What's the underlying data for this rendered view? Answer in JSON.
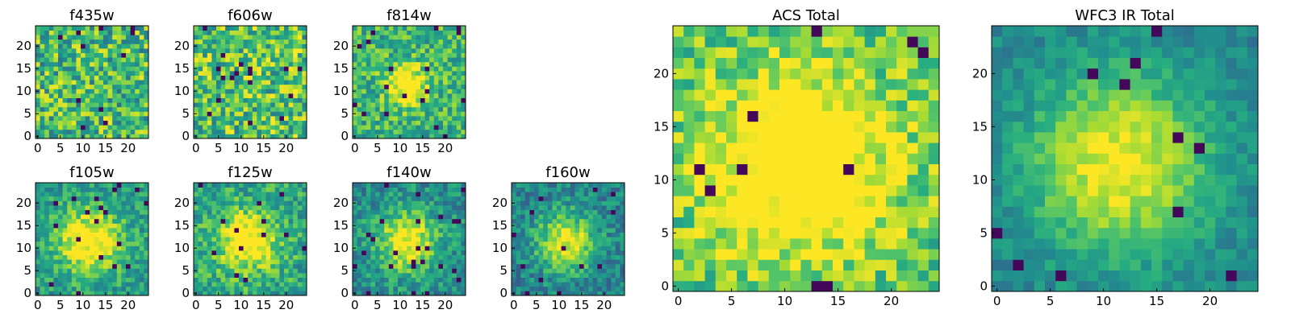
{
  "figure_title": "",
  "chart_data": [
    {
      "id": "f435w",
      "type": "heatmap",
      "title": "f435w",
      "grid_size": 25,
      "xticks": [
        0,
        5,
        10,
        15,
        20
      ],
      "yticks": [
        0,
        5,
        10,
        15,
        20
      ],
      "xlim": [
        0,
        24
      ],
      "ylim": [
        0,
        24
      ],
      "colormap": "viridis",
      "source_radius": 0,
      "noise": 0.6,
      "seed": 11,
      "background_level": 0.68
    },
    {
      "id": "f606w",
      "type": "heatmap",
      "title": "f606w",
      "grid_size": 25,
      "xticks": [
        0,
        5,
        10,
        15,
        20
      ],
      "yticks": [
        0,
        5,
        10,
        15,
        20
      ],
      "xlim": [
        0,
        24
      ],
      "ylim": [
        0,
        24
      ],
      "colormap": "viridis",
      "source_radius": 0,
      "noise": 0.6,
      "seed": 23,
      "background_level": 0.72
    },
    {
      "id": "f814w",
      "type": "heatmap",
      "title": "f814w",
      "grid_size": 25,
      "xticks": [
        0,
        5,
        10,
        15,
        20
      ],
      "yticks": [
        0,
        5,
        10,
        15,
        20
      ],
      "xlim": [
        0,
        24
      ],
      "ylim": [
        0,
        24
      ],
      "colormap": "viridis",
      "source_radius": 3,
      "noise": 0.45,
      "seed": 37,
      "background_level": 0.66
    },
    {
      "id": "f105w",
      "type": "heatmap",
      "title": "f105w",
      "grid_size": 25,
      "xticks": [
        0,
        5,
        10,
        15,
        20
      ],
      "yticks": [
        0,
        5,
        10,
        15,
        20
      ],
      "xlim": [
        0,
        24
      ],
      "ylim": [
        0,
        24
      ],
      "colormap": "viridis",
      "source_radius": 5,
      "noise": 0.35,
      "seed": 41,
      "background_level": 0.55
    },
    {
      "id": "f125w",
      "type": "heatmap",
      "title": "f125w",
      "grid_size": 25,
      "xticks": [
        0,
        5,
        10,
        15,
        20
      ],
      "yticks": [
        0,
        5,
        10,
        15,
        20
      ],
      "xlim": [
        0,
        24
      ],
      "ylim": [
        0,
        24
      ],
      "colormap": "viridis",
      "source_radius": 4.5,
      "noise": 0.4,
      "seed": 53,
      "background_level": 0.6
    },
    {
      "id": "f140w",
      "type": "heatmap",
      "title": "f140w",
      "grid_size": 25,
      "xticks": [
        0,
        5,
        10,
        15,
        20
      ],
      "yticks": [
        0,
        5,
        10,
        15,
        20
      ],
      "xlim": [
        0,
        24
      ],
      "ylim": [
        0,
        24
      ],
      "colormap": "viridis",
      "source_radius": 4.5,
      "noise": 0.35,
      "seed": 67,
      "background_level": 0.5
    },
    {
      "id": "f160w",
      "type": "heatmap",
      "title": "f160w",
      "grid_size": 25,
      "xticks": [
        0,
        5,
        10,
        15,
        20
      ],
      "yticks": [
        0,
        5,
        10,
        15,
        20
      ],
      "xlim": [
        0,
        24
      ],
      "ylim": [
        0,
        24
      ],
      "colormap": "viridis",
      "source_radius": 4.5,
      "noise": 0.35,
      "seed": 79,
      "background_level": 0.45
    },
    {
      "id": "acs-total",
      "type": "heatmap",
      "title": "ACS Total",
      "grid_size": 25,
      "xticks": [
        0,
        5,
        10,
        15,
        20
      ],
      "yticks": [
        0,
        5,
        10,
        15,
        20
      ],
      "xlim": [
        0,
        24
      ],
      "ylim": [
        0,
        24
      ],
      "colormap": "viridis",
      "source_radius": 6,
      "noise": 0.4,
      "seed": 97,
      "background_level": 0.72
    },
    {
      "id": "wfc3-ir-total",
      "type": "heatmap",
      "title": "WFC3 IR Total",
      "grid_size": 25,
      "xticks": [
        0,
        5,
        10,
        15,
        20
      ],
      "yticks": [
        0,
        5,
        10,
        15,
        20
      ],
      "xlim": [
        0,
        24
      ],
      "ylim": [
        0,
        24
      ],
      "colormap": "viridis",
      "source_radius": 6,
      "noise": 0.2,
      "seed": 113,
      "background_level": 0.45
    }
  ]
}
